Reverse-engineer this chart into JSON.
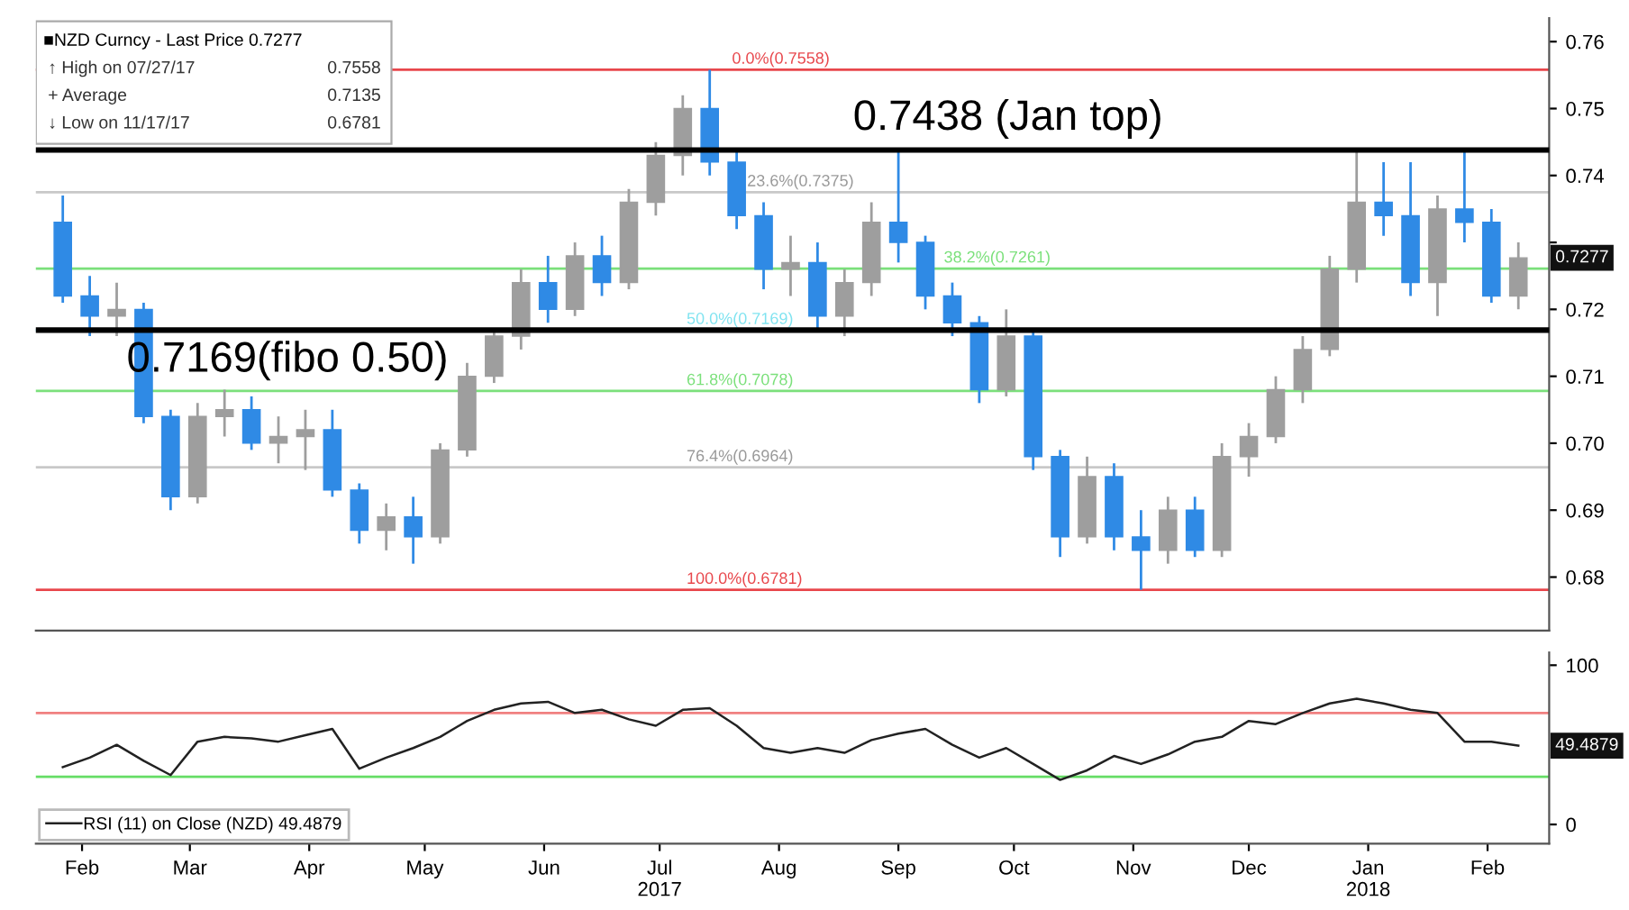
{
  "chart_data": [
    {
      "type": "candlestick",
      "x": [
        "2017-02-10",
        "2017-02-17",
        "2017-02-24",
        "2017-03-03",
        "2017-03-10",
        "2017-03-17",
        "2017-03-24",
        "2017-03-31",
        "2017-04-07",
        "2017-04-14",
        "2017-04-21",
        "2017-04-28",
        "2017-05-05",
        "2017-05-12",
        "2017-05-19",
        "2017-05-26",
        "2017-06-02",
        "2017-06-09",
        "2017-06-16",
        "2017-06-23",
        "2017-06-30",
        "2017-07-07",
        "2017-07-14",
        "2017-07-21",
        "2017-07-28",
        "2017-08-04",
        "2017-08-11",
        "2017-08-18",
        "2017-08-25",
        "2017-09-01",
        "2017-09-08",
        "2017-09-15",
        "2017-09-22",
        "2017-09-29",
        "2017-10-06",
        "2017-10-13",
        "2017-10-20",
        "2017-10-27",
        "2017-11-03",
        "2017-11-10",
        "2017-11-17",
        "2017-11-24",
        "2017-12-01",
        "2017-12-08",
        "2017-12-15",
        "2017-12-22",
        "2017-12-29",
        "2018-01-05",
        "2018-01-12",
        "2018-01-19",
        "2018-01-26",
        "2018-02-02",
        "2018-02-09",
        "2018-02-16",
        "2018-02-23"
      ],
      "ohlc": [
        [
          0.733,
          0.737,
          0.721,
          0.722
        ],
        [
          0.722,
          0.725,
          0.716,
          0.719
        ],
        [
          0.719,
          0.724,
          0.716,
          0.72
        ],
        [
          0.72,
          0.721,
          0.703,
          0.704
        ],
        [
          0.704,
          0.705,
          0.69,
          0.692
        ],
        [
          0.692,
          0.706,
          0.691,
          0.704
        ],
        [
          0.704,
          0.708,
          0.701,
          0.705
        ],
        [
          0.705,
          0.707,
          0.699,
          0.7
        ],
        [
          0.7,
          0.704,
          0.697,
          0.701
        ],
        [
          0.701,
          0.705,
          0.696,
          0.702
        ],
        [
          0.702,
          0.705,
          0.692,
          0.693
        ],
        [
          0.693,
          0.694,
          0.685,
          0.687
        ],
        [
          0.687,
          0.691,
          0.684,
          0.689
        ],
        [
          0.689,
          0.692,
          0.682,
          0.686
        ],
        [
          0.686,
          0.7,
          0.685,
          0.699
        ],
        [
          0.699,
          0.712,
          0.698,
          0.71
        ],
        [
          0.71,
          0.717,
          0.709,
          0.716
        ],
        [
          0.716,
          0.726,
          0.714,
          0.724
        ],
        [
          0.724,
          0.728,
          0.718,
          0.72
        ],
        [
          0.72,
          0.73,
          0.719,
          0.728
        ],
        [
          0.728,
          0.731,
          0.722,
          0.724
        ],
        [
          0.724,
          0.738,
          0.723,
          0.736
        ],
        [
          0.736,
          0.745,
          0.734,
          0.743
        ],
        [
          0.743,
          0.752,
          0.74,
          0.75
        ],
        [
          0.75,
          0.7558,
          0.74,
          0.742
        ],
        [
          0.742,
          0.744,
          0.732,
          0.734
        ],
        [
          0.734,
          0.736,
          0.723,
          0.726
        ],
        [
          0.726,
          0.731,
          0.722,
          0.727
        ],
        [
          0.727,
          0.73,
          0.717,
          0.719
        ],
        [
          0.719,
          0.726,
          0.716,
          0.724
        ],
        [
          0.724,
          0.736,
          0.722,
          0.733
        ],
        [
          0.733,
          0.7435,
          0.727,
          0.73
        ],
        [
          0.73,
          0.731,
          0.72,
          0.722
        ],
        [
          0.722,
          0.724,
          0.716,
          0.718
        ],
        [
          0.718,
          0.719,
          0.706,
          0.708
        ],
        [
          0.708,
          0.72,
          0.707,
          0.716
        ],
        [
          0.716,
          0.717,
          0.696,
          0.698
        ],
        [
          0.698,
          0.699,
          0.683,
          0.686
        ],
        [
          0.686,
          0.698,
          0.685,
          0.695
        ],
        [
          0.695,
          0.697,
          0.684,
          0.686
        ],
        [
          0.686,
          0.69,
          0.6781,
          0.684
        ],
        [
          0.684,
          0.692,
          0.682,
          0.69
        ],
        [
          0.69,
          0.692,
          0.683,
          0.684
        ],
        [
          0.684,
          0.7,
          0.683,
          0.698
        ],
        [
          0.698,
          0.703,
          0.695,
          0.701
        ],
        [
          0.701,
          0.71,
          0.7,
          0.708
        ],
        [
          0.708,
          0.716,
          0.706,
          0.714
        ],
        [
          0.714,
          0.728,
          0.713,
          0.726
        ],
        [
          0.726,
          0.7438,
          0.724,
          0.736
        ],
        [
          0.736,
          0.742,
          0.731,
          0.734
        ],
        [
          0.734,
          0.742,
          0.722,
          0.724
        ],
        [
          0.724,
          0.737,
          0.719,
          0.735
        ],
        [
          0.735,
          0.7438,
          0.73,
          0.733
        ],
        [
          0.733,
          0.735,
          0.721,
          0.722
        ],
        [
          0.722,
          0.73,
          0.72,
          0.7277
        ]
      ],
      "colors": [
        "#2f8ae5",
        "#2f8ae5",
        "#9e9e9e",
        "#2f8ae5",
        "#2f8ae5",
        "#9e9e9e",
        "#9e9e9e",
        "#2f8ae5",
        "#9e9e9e",
        "#9e9e9e",
        "#2f8ae5",
        "#2f8ae5",
        "#9e9e9e",
        "#2f8ae5",
        "#9e9e9e",
        "#9e9e9e",
        "#9e9e9e",
        "#9e9e9e",
        "#2f8ae5",
        "#9e9e9e",
        "#2f8ae5",
        "#9e9e9e",
        "#9e9e9e",
        "#9e9e9e",
        "#2f8ae5",
        "#2f8ae5",
        "#2f8ae5",
        "#9e9e9e",
        "#2f8ae5",
        "#9e9e9e",
        "#9e9e9e",
        "#2f8ae5",
        "#2f8ae5",
        "#2f8ae5",
        "#2f8ae5",
        "#9e9e9e",
        "#2f8ae5",
        "#2f8ae5",
        "#9e9e9e",
        "#2f8ae5",
        "#2f8ae5",
        "#9e9e9e",
        "#2f8ae5",
        "#9e9e9e",
        "#9e9e9e",
        "#9e9e9e",
        "#9e9e9e",
        "#9e9e9e",
        "#9e9e9e",
        "#2f8ae5",
        "#2f8ae5",
        "#9e9e9e",
        "#2f8ae5",
        "#2f8ae5",
        "#9e9e9e"
      ],
      "xlim": [
        "2017-02-03",
        "2018-03-03"
      ],
      "ylim": [
        0.672,
        0.7635
      ],
      "yticks": [
        0.68,
        0.69,
        {
          "value": 0.7,
          "label": "0.70"
        },
        0.71,
        0.72,
        {
          "value": 0.73,
          "label": null
        },
        0.74,
        0.75,
        0.76
      ],
      "tick_labels": "y",
      "ref_lines": [
        {
          "axis": "y",
          "value": 0.7438,
          "label": "0.7438 (Jan top)",
          "color": "#000000"
        },
        {
          "axis": "y",
          "value": 0.7169,
          "label": "0.7169(fibo 0.50)",
          "color": "#000000"
        },
        {
          "axis": "y",
          "value": 0.7558,
          "label": "0.0%(0.7558)",
          "color": "#e8474c"
        },
        {
          "axis": "y",
          "value": 0.7375,
          "label": "23.6%(0.7375)",
          "color": "#c8c8c8"
        },
        {
          "axis": "y",
          "value": 0.7261,
          "label": "38.2%(0.7261)",
          "color": "#7be07b"
        },
        {
          "axis": "y",
          "value": 0.7169,
          "label": "50.0%(0.7169)",
          "color": "#7fe3f0"
        },
        {
          "axis": "y",
          "value": 0.7078,
          "label": "61.8%(0.7078)",
          "color": "#7be07b"
        },
        {
          "axis": "y",
          "value": 0.6964,
          "label": "76.4%(0.6964)",
          "color": "#c8c8c8"
        },
        {
          "axis": "y",
          "value": 0.6781,
          "label": "100.0%(0.6781)",
          "color": "#e8474c"
        }
      ],
      "annotations": [
        "■NZD Curncy - Last Price 0.7277",
        "↑ High on 07/27/17",
        "0.7558",
        "+ Average",
        "0.7135",
        "↓ Low on 11/17/17",
        "0.6781",
        {
          "text": "0.7277",
          "x": "2018-02-23",
          "y": 0.7277
        }
      ]
    },
    {
      "type": "line",
      "x": [
        "2017-02-10",
        "2017-02-17",
        "2017-02-24",
        "2017-03-03",
        "2017-03-10",
        "2017-03-17",
        "2017-03-24",
        "2017-03-31",
        "2017-04-07",
        "2017-04-14",
        "2017-04-21",
        "2017-04-28",
        "2017-05-05",
        "2017-05-12",
        "2017-05-19",
        "2017-05-26",
        "2017-06-02",
        "2017-06-09",
        "2017-06-16",
        "2017-06-23",
        "2017-06-30",
        "2017-07-07",
        "2017-07-14",
        "2017-07-21",
        "2017-07-28",
        "2017-08-04",
        "2017-08-11",
        "2017-08-18",
        "2017-08-25",
        "2017-09-01",
        "2017-09-08",
        "2017-09-15",
        "2017-09-22",
        "2017-09-29",
        "2017-10-06",
        "2017-10-13",
        "2017-10-20",
        "2017-10-27",
        "2017-11-03",
        "2017-11-10",
        "2017-11-17",
        "2017-11-24",
        "2017-12-01",
        "2017-12-08",
        "2017-12-15",
        "2017-12-22",
        "2017-12-29",
        "2018-01-05",
        "2018-01-12",
        "2018-01-19",
        "2018-01-26",
        "2018-02-02",
        "2018-02-09",
        "2018-02-16",
        "2018-02-23"
      ],
      "series": [
        {
          "name": "RSI (11) on Close (NZD) 49.4879",
          "color": "#222222",
          "values": [
            36,
            42,
            50,
            40,
            31,
            52,
            55,
            54,
            52,
            56,
            60,
            35,
            42,
            48,
            55,
            65,
            72,
            76,
            77,
            70,
            72,
            66,
            62,
            72,
            73,
            62,
            48,
            45,
            48,
            45,
            53,
            57,
            60,
            50,
            42,
            48,
            38,
            28,
            34,
            43,
            38,
            44,
            52,
            55,
            65,
            63,
            70,
            76,
            79,
            76,
            72,
            70,
            52,
            52,
            49.5
          ]
        }
      ],
      "xlim": [
        "2017-02-03",
        "2018-03-03"
      ],
      "xticks": [
        {
          "value": "2017-02-15",
          "label": "Feb"
        },
        {
          "value": "2017-03-15",
          "label": "Mar"
        },
        {
          "value": "2017-04-15",
          "label": "Apr"
        },
        {
          "value": "2017-05-15",
          "label": "May"
        },
        {
          "value": "2017-06-15",
          "label": "Jun"
        },
        {
          "value": "2017-07-15",
          "label": "Jul\n2017"
        },
        {
          "value": "2017-08-15",
          "label": "Aug"
        },
        {
          "value": "2017-09-15",
          "label": "Sep"
        },
        {
          "value": "2017-10-15",
          "label": "Oct"
        },
        {
          "value": "2017-11-15",
          "label": "Nov"
        },
        {
          "value": "2017-12-15",
          "label": "Dec"
        },
        {
          "value": "2018-01-15",
          "label": "Jan\n2018"
        },
        {
          "value": "2018-02-15",
          "label": "Feb"
        }
      ],
      "ylim": [
        -12,
        108
      ],
      "yticks": [
        0,
        100
      ],
      "ref_lines": [
        {
          "axis": "y",
          "value": 70,
          "color": "#f08080"
        },
        {
          "axis": "y",
          "value": 30,
          "color": "#66dd66"
        }
      ],
      "legend": "bottom left",
      "annotations": [
        {
          "text": "49.4879",
          "x": "2018-02-23",
          "y": 49.5
        }
      ]
    }
  ]
}
